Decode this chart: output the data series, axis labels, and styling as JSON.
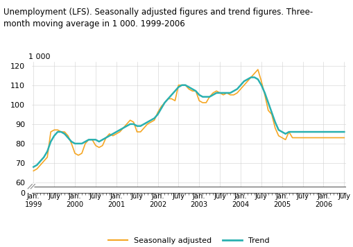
{
  "title": "Unemployment (LFS). Seasonally adjusted figures and trend figures. Three-\nmonth moving average in 1 000. 1999-2006",
  "ylabel_top": "1 000",
  "seasonally_adjusted_color": "#f5a623",
  "trend_color": "#2ab0b0",
  "ylim_plot": [
    60,
    122
  ],
  "ylim_full": [
    0,
    122
  ],
  "yticks": [
    60,
    70,
    80,
    90,
    100,
    110,
    120
  ],
  "yzero": 0,
  "seasonally_adjusted": [
    66,
    67,
    69,
    71,
    73,
    86,
    87,
    87,
    86,
    86,
    84,
    80,
    75,
    74,
    75,
    80,
    82,
    82,
    79,
    78,
    79,
    83,
    85,
    84,
    85,
    86,
    88,
    90,
    92,
    91,
    86,
    86,
    88,
    90,
    91,
    92,
    96,
    99,
    101,
    103,
    103,
    102,
    110,
    110,
    110,
    108,
    107,
    107,
    102,
    101,
    101,
    104,
    106,
    107,
    106,
    105,
    106,
    105,
    105,
    106,
    108,
    110,
    112,
    114,
    116,
    118,
    112,
    105,
    97,
    95,
    88,
    84,
    83,
    82,
    86,
    83
  ],
  "trend": [
    68,
    69,
    71,
    73,
    76,
    81,
    84,
    86,
    86,
    85,
    83,
    81,
    80,
    80,
    80,
    81,
    82,
    82,
    82,
    81,
    82,
    83,
    84,
    85,
    86,
    87,
    88,
    89,
    90,
    90,
    89,
    89,
    90,
    91,
    92,
    93,
    95,
    98,
    101,
    103,
    105,
    107,
    109,
    110,
    110,
    109,
    108,
    107,
    105,
    104,
    104,
    104,
    105,
    106,
    106,
    106,
    106,
    106,
    107,
    108,
    110,
    112,
    113,
    114,
    114,
    113,
    110,
    106,
    101,
    96,
    91,
    87,
    86,
    85,
    86,
    86
  ],
  "n_months": 91
}
